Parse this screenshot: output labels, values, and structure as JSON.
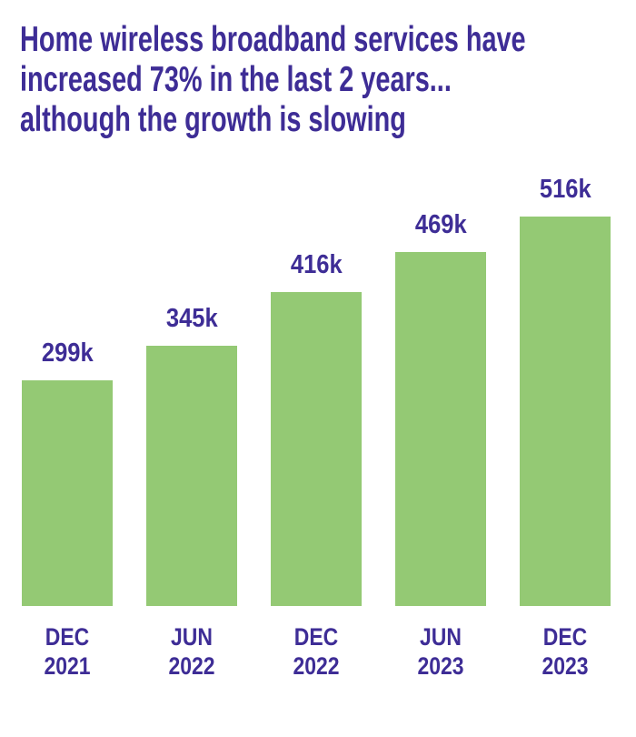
{
  "page": {
    "background": "#FFFFFF"
  },
  "title": {
    "lines": [
      "Home wireless broadband services have",
      "increased 73% in the last 2 years...",
      "although the growth is slowing"
    ],
    "color": "#3E2D96"
  },
  "chart_data": {
    "type": "bar",
    "title": "Home wireless broadband services have increased 73% in the last 2 years... although the growth is slowing",
    "categories": [
      "DEC 2021",
      "JUN 2022",
      "DEC 2022",
      "JUN 2023",
      "DEC 2023"
    ],
    "category_lines": [
      [
        "DEC",
        "2021"
      ],
      [
        "JUN",
        "2022"
      ],
      [
        "DEC",
        "2022"
      ],
      [
        "JUN",
        "2023"
      ],
      [
        "DEC",
        "2023"
      ]
    ],
    "values": [
      299000,
      345000,
      416000,
      469000,
      516000
    ],
    "value_labels": [
      "299k",
      "345k",
      "416k",
      "469k",
      "516k"
    ],
    "xlabel": "",
    "ylabel": "",
    "ylim": [
      0,
      516000
    ],
    "grid": false,
    "legend": false,
    "bar_color": "#94C974",
    "label_color": "#3E2D96"
  }
}
